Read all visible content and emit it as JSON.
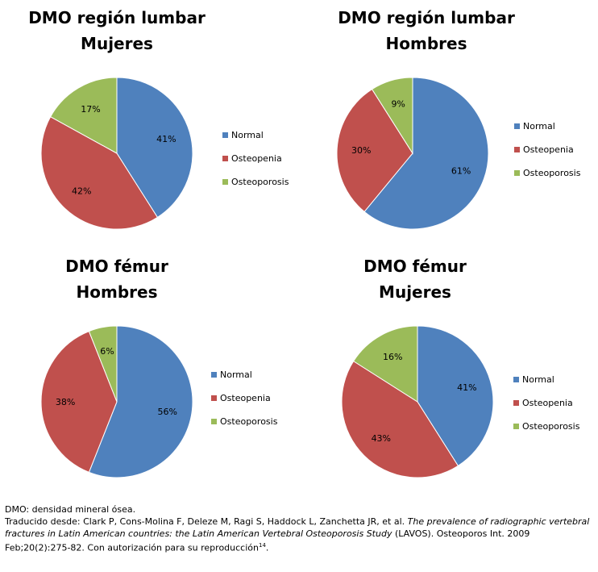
{
  "colors": {
    "Normal": "#4f81bd",
    "Osteopenia": "#c0504d",
    "Osteoporosis": "#9bbb59"
  },
  "chart_data": [
    {
      "type": "pie",
      "title": [
        "DMO región lumbar",
        "Mujeres"
      ],
      "categories": [
        "Normal",
        "Osteopenia",
        "Osteoporosis"
      ],
      "values": [
        41,
        42,
        17
      ],
      "labels": [
        "41%",
        "42%",
        "17%"
      ]
    },
    {
      "type": "pie",
      "title": [
        "DMO región lumbar",
        "Hombres"
      ],
      "categories": [
        "Normal",
        "Osteopenia",
        "Osteoporosis"
      ],
      "values": [
        61,
        30,
        9
      ],
      "labels": [
        "61%",
        "30%",
        "9%"
      ]
    },
    {
      "type": "pie",
      "title": [
        "DMO fémur",
        "Hombres"
      ],
      "categories": [
        "Normal",
        "Osteopenia",
        "Osteoporosis"
      ],
      "values": [
        56,
        38,
        6
      ],
      "labels": [
        "56%",
        "38%",
        "6%"
      ]
    },
    {
      "type": "pie",
      "title": [
        "DMO fémur",
        "Mujeres"
      ],
      "categories": [
        "Normal",
        "Osteopenia",
        "Osteoporosis"
      ],
      "values": [
        41,
        43,
        16
      ],
      "labels": [
        "41%",
        "43%",
        "16%"
      ]
    }
  ],
  "footnote": {
    "line1": "DMO: densidad mineral ósea.",
    "line2_prefix": "Traducido desde: Clark P, Cons-Molina F, Deleze M, Ragi S, Haddock L, Zanchetta JR, et al. ",
    "line2_italic": "The prevalence of radiographic vertebral fractures in Latin American countries: the Latin American Vertebral Osteoporosis Study",
    "line2_suffix": " (LAVOS). Osteoporos Int. 2009 Feb;20(2):275-82. Con autorización para su reproducción",
    "superscript": "14",
    "end": "."
  }
}
